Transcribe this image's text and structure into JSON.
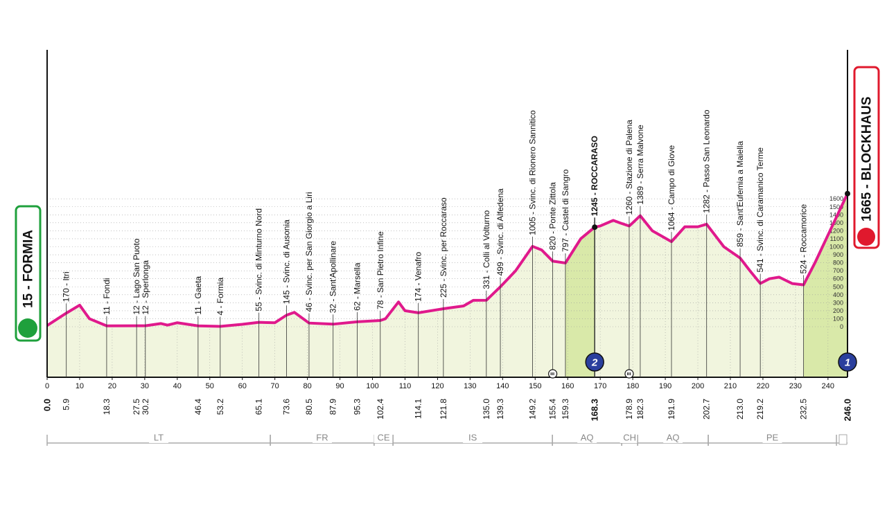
{
  "chart_data": {
    "type": "area",
    "start": "15 - FORMIA",
    "finish": "1665 - BLOCKHAUS",
    "color": "#e0198c",
    "fill": "#f1f5de",
    "climb_fill": "#d9e9a9",
    "xlim": [
      0,
      246
    ],
    "xticks": [
      0,
      10,
      20,
      30,
      40,
      50,
      60,
      70,
      80,
      90,
      100,
      110,
      120,
      130,
      140,
      150,
      160,
      170,
      180,
      190,
      200,
      210,
      220,
      230,
      240
    ],
    "yticks": [
      0,
      100,
      200,
      300,
      400,
      500,
      600,
      700,
      800,
      900,
      1000,
      1100,
      1200,
      1300,
      1400,
      1500,
      1600
    ],
    "grid": true,
    "x": [
      0,
      5.9,
      10,
      13,
      18.3,
      27.5,
      30.2,
      35,
      37,
      40,
      46.4,
      53.2,
      60,
      65.1,
      70,
      73.6,
      76,
      80.5,
      87.9,
      95.3,
      102.4,
      104,
      108,
      110,
      114.1,
      121.8,
      128,
      131,
      135,
      139.3,
      144,
      149.2,
      152,
      155.4,
      159.3,
      164,
      168.3,
      170,
      174,
      176,
      178.9,
      180,
      182.3,
      186,
      191.9,
      196,
      200,
      202.7,
      208,
      213,
      216,
      219.2,
      222,
      225,
      229,
      232.5,
      236,
      246
    ],
    "series": [
      {
        "values": [
          15,
          170,
          270,
          100,
          11,
          12,
          12,
          40,
          20,
          50,
          11,
          4,
          30,
          55,
          50,
          145,
          180,
          46,
          32,
          62,
          78,
          100,
          310,
          200,
          174,
          225,
          260,
          330,
          331,
          499,
          700,
          1005,
          960,
          820,
          797,
          1100,
          1245,
          1260,
          1330,
          1300,
          1260,
          1300,
          1389,
          1200,
          1064,
          1250,
          1250,
          1282,
          1000,
          859,
          700,
          541,
          600,
          620,
          540,
          524,
          800,
          1665
        ]
      }
    ],
    "waypoints": [
      {
        "km": {
          "value": 0,
          "label": "0.0"
        }
      },
      {
        "label": "170 - Itri",
        "km": {
          "value": 5.9,
          "label": "5.9"
        }
      },
      {
        "label": "11 - Fondi",
        "km": {
          "value": 18.3,
          "label": "18.3"
        }
      },
      {
        "label": "12 - Lago San Puoto",
        "km": {
          "value": 27.5,
          "label": "27.5"
        }
      },
      {
        "label": "12 - Sperlonga",
        "km": {
          "value": 30.2,
          "label": "30.2"
        }
      },
      {
        "label": "11 - Gaeta",
        "km": {
          "value": 46.4,
          "label": "46.4"
        }
      },
      {
        "label": "4 - Formia",
        "km": {
          "value": 53.2,
          "label": "53.2"
        }
      },
      {
        "label": "55 - Svinc. di Minturno Nord",
        "km": {
          "value": 65.1,
          "label": "65.1"
        }
      },
      {
        "label": "145 - Svinc. di Ausonia",
        "km": {
          "value": 73.6,
          "label": "73.6"
        }
      },
      {
        "label": "46 - Svinc. per San Giorgio a Liri",
        "km": {
          "value": 80.5,
          "label": "80.5"
        }
      },
      {
        "label": "32 - Sant'Apollinare",
        "km": {
          "value": 87.9,
          "label": "87.9"
        }
      },
      {
        "label": "62 - Marsella",
        "km": {
          "value": 95.3,
          "label": "95.3"
        }
      },
      {
        "label": "78 - San Pietro Infine",
        "km": {
          "value": 102.4,
          "label": "102.4"
        }
      },
      {
        "label": "174 - Venafro",
        "km": {
          "value": 114.1,
          "label": "114.1"
        }
      },
      {
        "label": "225 - Svinc. per Roccaraso",
        "km": {
          "value": 121.8,
          "label": "121.8"
        }
      },
      {
        "label": "331 - Colli al Volturno",
        "km": {
          "value": 135,
          "label": "135.0"
        }
      },
      {
        "label": "499 - Svinc. di Alfedena",
        "km": {
          "value": 139.3,
          "label": "139.3"
        }
      },
      {
        "label": "1005 - Svinc. di Rionero Sannitico",
        "km": {
          "value": 149.2,
          "label": "149.2"
        }
      },
      {
        "label": "820 - Ponte Zittola",
        "km": {
          "value": 155.4,
          "label": "155.4"
        }
      },
      {
        "label": "797 - Castel di Sangro",
        "km": {
          "value": 159.3,
          "label": "159.3"
        }
      },
      {
        "label": "1245 - ROCCARASO",
        "km": {
          "value": 168.3,
          "label": "168.3"
        },
        "bold": true
      },
      {
        "label": "1260 - Stazione di Palena",
        "km": {
          "value": 178.9,
          "label": "178.9"
        }
      },
      {
        "label": "1389 - Serra Malvone",
        "km": {
          "value": 182.3,
          "label": "182.3"
        }
      },
      {
        "label": "1064 - Campo di Giove",
        "km": {
          "value": 191.9,
          "label": "191.9"
        }
      },
      {
        "label": "1282 - Passo San Leonardo",
        "km": {
          "value": 202.7,
          "label": "202.7"
        }
      },
      {
        "label": "859 - Sant'Eufemia a Maiella",
        "km": {
          "value": 213,
          "label": "213.0"
        }
      },
      {
        "label": "541 - Svinc. di Caramanico Terme",
        "km": {
          "value": 219.2,
          "label": "219.2"
        }
      },
      {
        "label": "524 - Roccamorice",
        "km": {
          "value": 232.5,
          "label": "232.5"
        }
      },
      {
        "km": {
          "value": 246,
          "label": "246.0"
        }
      }
    ],
    "kom": [
      {
        "category": "2",
        "from": 159.3,
        "km": 168.3
      },
      {
        "category": "1",
        "from": 232.5,
        "km": 246
      }
    ],
    "sprints": [
      155.4,
      178.9
    ],
    "regions": [
      {
        "name": "LT",
        "from": 0,
        "to": 68.6
      },
      {
        "name": "FR",
        "from": 68.6,
        "to": 100.5
      },
      {
        "name": "CE",
        "from": 100.5,
        "to": 106.3
      },
      {
        "name": "IS",
        "from": 106.3,
        "to": 155.3
      },
      {
        "name": "AQ",
        "from": 155.3,
        "to": 176.6
      },
      {
        "name": "CH",
        "from": 176.6,
        "to": 181.5
      },
      {
        "name": "AQ",
        "from": 181.5,
        "to": 203.2
      },
      {
        "name": "PE",
        "from": 203.2,
        "to": 242.6
      }
    ]
  }
}
